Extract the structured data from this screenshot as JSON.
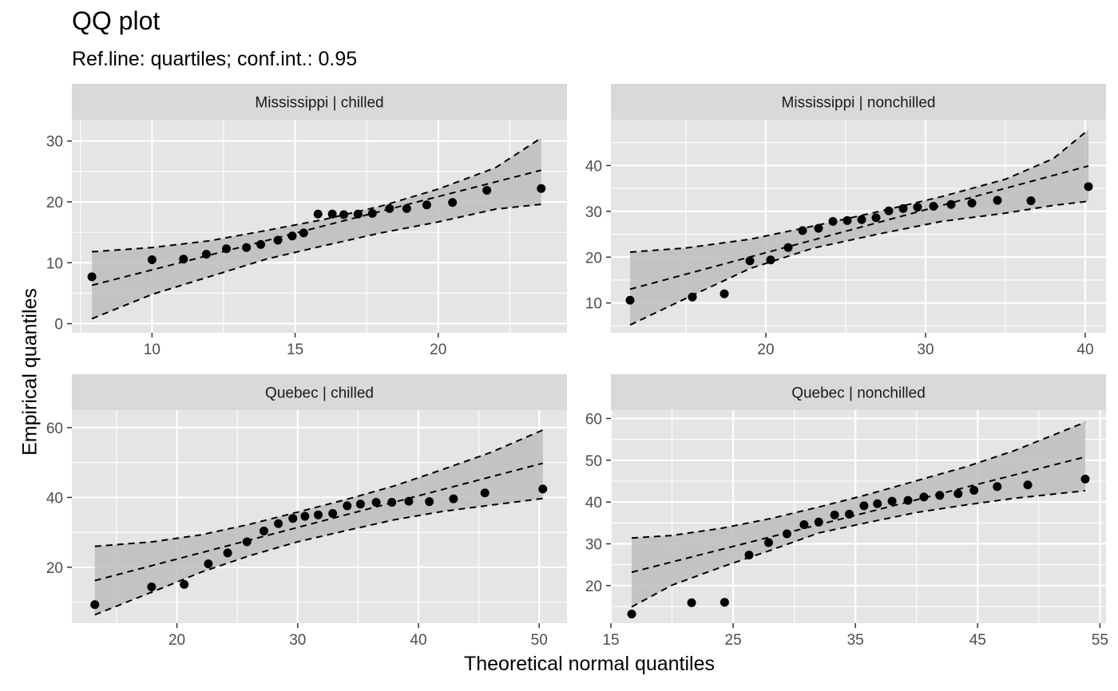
{
  "title": "QQ plot",
  "subtitle": "Ref.line: quartiles; conf.int.: 0.95",
  "xlabel": "Theoretical normal quantiles",
  "ylabel": "Empirical quantiles",
  "colors": {
    "panel_bg": "#e5e5e5",
    "strip_bg": "#d9d9d9",
    "grid": "#ffffff",
    "band": "#bdbdbd",
    "points": "#000000"
  },
  "chart_data": [
    {
      "type": "scatter",
      "panel": "Mississippi | chilled",
      "xlim": [
        7.2,
        24.5
      ],
      "ylim": [
        -1.5,
        33.5
      ],
      "xticks": [
        10,
        15,
        20
      ],
      "yticks": [
        0,
        10,
        20,
        30
      ],
      "points": [
        [
          7.9,
          7.7
        ],
        [
          10.0,
          10.5
        ],
        [
          11.1,
          10.6
        ],
        [
          11.9,
          11.4
        ],
        [
          12.6,
          12.3
        ],
        [
          13.3,
          12.5
        ],
        [
          13.8,
          13.0
        ],
        [
          14.4,
          13.7
        ],
        [
          14.9,
          14.4
        ],
        [
          15.3,
          14.9
        ],
        [
          15.8,
          18.0
        ],
        [
          16.3,
          18.0
        ],
        [
          16.7,
          17.9
        ],
        [
          17.2,
          18.0
        ],
        [
          17.7,
          18.1
        ],
        [
          18.3,
          18.9
        ],
        [
          18.9,
          18.9
        ],
        [
          19.6,
          19.5
        ],
        [
          20.5,
          19.9
        ],
        [
          21.7,
          21.9
        ],
        [
          23.6,
          22.2
        ]
      ],
      "ref_line": [
        [
          7.9,
          6.3
        ],
        [
          23.6,
          25.2
        ]
      ],
      "band_upper": [
        [
          7.9,
          11.8
        ],
        [
          10.0,
          12.5
        ],
        [
          12.0,
          13.6
        ],
        [
          14.0,
          15.3
        ],
        [
          16.0,
          17.1
        ],
        [
          18.0,
          19.3
        ],
        [
          20.0,
          22.1
        ],
        [
          22.0,
          25.6
        ],
        [
          23.6,
          30.5
        ]
      ],
      "band_lower": [
        [
          7.9,
          0.8
        ],
        [
          10.0,
          4.8
        ],
        [
          12.0,
          7.7
        ],
        [
          14.0,
          10.6
        ],
        [
          16.0,
          12.8
        ],
        [
          18.0,
          14.9
        ],
        [
          20.0,
          16.7
        ],
        [
          22.0,
          18.8
        ],
        [
          23.6,
          19.6
        ]
      ]
    },
    {
      "type": "scatter",
      "panel": "Mississippi | nonchilled",
      "xlim": [
        10.3,
        41.3
      ],
      "ylim": [
        3.5,
        50.0
      ],
      "xticks": [
        20,
        30,
        40
      ],
      "yticks": [
        10,
        20,
        30,
        40
      ],
      "points": [
        [
          11.5,
          10.6
        ],
        [
          15.4,
          11.3
        ],
        [
          17.4,
          12.0
        ],
        [
          19.0,
          19.2
        ],
        [
          20.3,
          19.4
        ],
        [
          21.4,
          22.1
        ],
        [
          22.3,
          25.8
        ],
        [
          23.3,
          26.3
        ],
        [
          24.2,
          27.8
        ],
        [
          25.1,
          28.0
        ],
        [
          26.0,
          28.2
        ],
        [
          26.9,
          28.6
        ],
        [
          27.7,
          30.1
        ],
        [
          28.6,
          30.6
        ],
        [
          29.5,
          30.9
        ],
        [
          30.5,
          31.1
        ],
        [
          31.6,
          31.5
        ],
        [
          32.9,
          31.8
        ],
        [
          34.5,
          32.4
        ],
        [
          36.6,
          32.3
        ],
        [
          40.2,
          35.4
        ]
      ],
      "ref_line": [
        [
          11.5,
          13.0
        ],
        [
          40.2,
          39.9
        ]
      ],
      "band_upper": [
        [
          11.5,
          21.1
        ],
        [
          15.0,
          22.0
        ],
        [
          19.0,
          23.9
        ],
        [
          23.0,
          26.8
        ],
        [
          27.0,
          29.9
        ],
        [
          31.0,
          33.2
        ],
        [
          35.0,
          37.0
        ],
        [
          38.0,
          41.5
        ],
        [
          40.2,
          47.8
        ]
      ],
      "band_lower": [
        [
          11.5,
          5.2
        ],
        [
          15.0,
          11.0
        ],
        [
          19.0,
          17.5
        ],
        [
          23.0,
          22.0
        ],
        [
          27.0,
          25.0
        ],
        [
          31.0,
          27.8
        ],
        [
          35.0,
          29.6
        ],
        [
          38.0,
          31.3
        ],
        [
          40.2,
          32.2
        ]
      ]
    },
    {
      "type": "scatter",
      "panel": "Quebec | chilled",
      "xlim": [
        11.3,
        52.3
      ],
      "ylim": [
        4.0,
        65.0
      ],
      "xticks": [
        20,
        30,
        40,
        50
      ],
      "yticks": [
        20,
        40,
        60
      ],
      "points": [
        [
          13.2,
          9.3
        ],
        [
          17.9,
          14.4
        ],
        [
          20.6,
          15.1
        ],
        [
          22.6,
          21.0
        ],
        [
          24.2,
          24.1
        ],
        [
          25.8,
          27.3
        ],
        [
          27.2,
          30.4
        ],
        [
          28.4,
          32.5
        ],
        [
          29.6,
          34.0
        ],
        [
          30.6,
          34.6
        ],
        [
          31.7,
          35.0
        ],
        [
          32.9,
          35.4
        ],
        [
          34.1,
          37.6
        ],
        [
          35.2,
          38.1
        ],
        [
          36.5,
          38.6
        ],
        [
          37.8,
          38.6
        ],
        [
          39.2,
          38.9
        ],
        [
          40.9,
          38.8
        ],
        [
          42.9,
          39.6
        ],
        [
          45.5,
          41.3
        ],
        [
          50.3,
          42.4
        ]
      ],
      "ref_line": [
        [
          13.2,
          16.2
        ],
        [
          50.3,
          49.8
        ]
      ],
      "band_upper": [
        [
          13.2,
          26.0
        ],
        [
          18.0,
          27.3
        ],
        [
          22.0,
          29.3
        ],
        [
          26.0,
          32.3
        ],
        [
          30.0,
          35.8
        ],
        [
          34.0,
          39.4
        ],
        [
          38.0,
          43.3
        ],
        [
          42.0,
          48.0
        ],
        [
          46.0,
          52.9
        ],
        [
          50.3,
          59.3
        ]
      ],
      "band_lower": [
        [
          13.2,
          6.4
        ],
        [
          18.0,
          13.0
        ],
        [
          22.0,
          18.6
        ],
        [
          26.0,
          23.3
        ],
        [
          30.0,
          27.3
        ],
        [
          34.0,
          30.5
        ],
        [
          38.0,
          33.6
        ],
        [
          42.0,
          36.0
        ],
        [
          46.0,
          37.8
        ],
        [
          50.3,
          39.7
        ]
      ]
    },
    {
      "type": "scatter",
      "panel": "Quebec | nonchilled",
      "xlim": [
        15.0,
        55.5
      ],
      "ylim": [
        11.0,
        62.0
      ],
      "xticks": [
        15,
        25,
        35,
        45,
        55
      ],
      "yticks": [
        20,
        30,
        40,
        50,
        60
      ],
      "points": [
        [
          16.7,
          13.2
        ],
        [
          21.6,
          15.9
        ],
        [
          24.3,
          16.0
        ],
        [
          26.3,
          27.3
        ],
        [
          27.9,
          30.3
        ],
        [
          29.4,
          32.4
        ],
        [
          30.8,
          34.6
        ],
        [
          32.0,
          35.2
        ],
        [
          33.3,
          36.9
        ],
        [
          34.5,
          37.1
        ],
        [
          35.7,
          39.1
        ],
        [
          36.8,
          39.6
        ],
        [
          38.0,
          40.2
        ],
        [
          39.3,
          40.4
        ],
        [
          40.6,
          41.2
        ],
        [
          41.9,
          41.6
        ],
        [
          43.4,
          42.0
        ],
        [
          44.7,
          42.8
        ],
        [
          46.6,
          43.7
        ],
        [
          49.1,
          44.1
        ],
        [
          53.8,
          45.5
        ]
      ],
      "ref_line": [
        [
          16.7,
          23.2
        ],
        [
          53.8,
          50.8
        ]
      ],
      "band_upper": [
        [
          16.7,
          31.4
        ],
        [
          20.0,
          32.0
        ],
        [
          24.0,
          33.7
        ],
        [
          28.0,
          36.0
        ],
        [
          32.0,
          38.8
        ],
        [
          36.0,
          41.8
        ],
        [
          40.0,
          45.1
        ],
        [
          44.0,
          48.4
        ],
        [
          48.0,
          52.3
        ],
        [
          53.8,
          59.1
        ]
      ],
      "band_lower": [
        [
          16.7,
          14.9
        ],
        [
          20.0,
          20.1
        ],
        [
          24.0,
          24.4
        ],
        [
          28.0,
          28.4
        ],
        [
          32.0,
          32.6
        ],
        [
          36.0,
          35.1
        ],
        [
          40.0,
          37.5
        ],
        [
          44.0,
          39.3
        ],
        [
          48.0,
          40.9
        ],
        [
          53.8,
          42.7
        ]
      ]
    }
  ]
}
